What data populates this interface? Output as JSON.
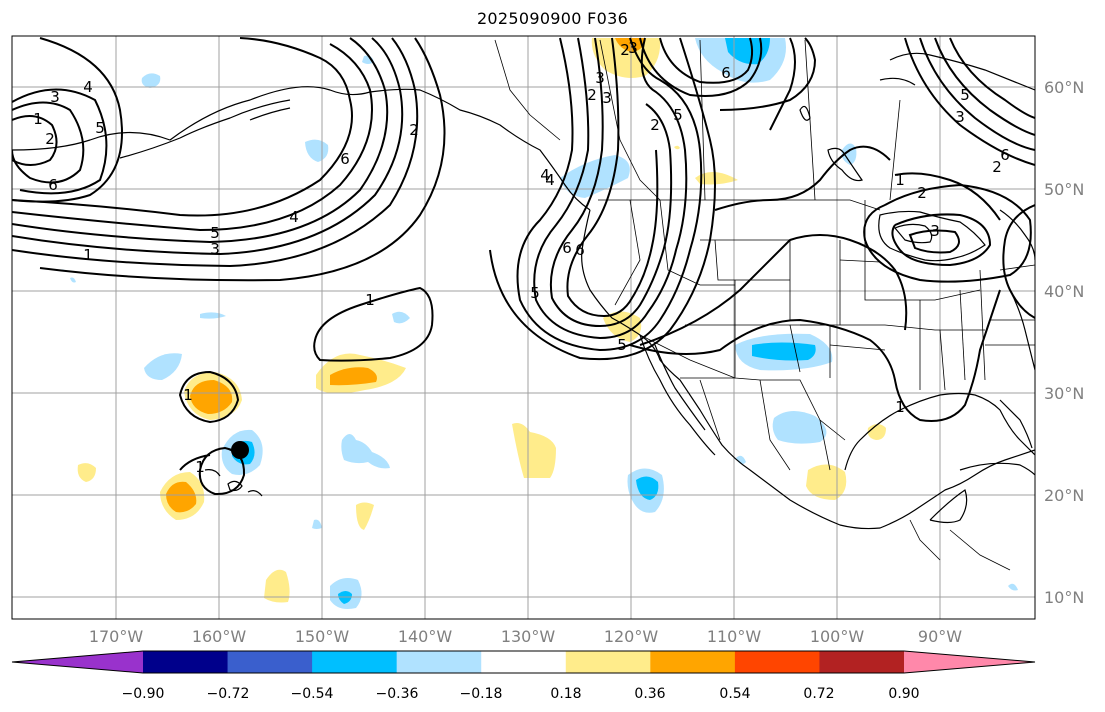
{
  "title": "2025090900 F036",
  "lon_ticks": [
    "170°W",
    "160°W",
    "150°W",
    "140°W",
    "130°W",
    "120°W",
    "110°W",
    "100°W",
    "90°W"
  ],
  "lat_ticks": [
    "60°N",
    "50°N",
    "40°N",
    "30°N",
    "20°N",
    "10°N"
  ],
  "colorbar": {
    "colors": [
      "#9932cc",
      "#00008b",
      "#3a5fcd",
      "#00bfff",
      "#b0e2ff",
      "#ffffff",
      "#ffec8b",
      "#ffa500",
      "#ff4500",
      "#b22222",
      "#ff88aa"
    ],
    "labels": [
      "−0.90",
      "−0.72",
      "−0.54",
      "−0.36",
      "−0.18",
      "0.18",
      "0.36",
      "0.54",
      "0.72",
      "0.90"
    ]
  },
  "contour_labels": [
    "3",
    "4",
    "5",
    "1",
    "2",
    "6",
    "6",
    "5",
    "3",
    "4",
    "2",
    "6",
    "1",
    "2",
    "3",
    "3",
    "2",
    "5",
    "6",
    "4",
    "6",
    "5",
    "3",
    "2",
    "1",
    "1",
    "1",
    "1",
    "4",
    "5",
    "6",
    "5",
    "3",
    "2",
    "1",
    "2",
    "3"
  ],
  "map_elements": {
    "marker": "storm-center-dot"
  }
}
